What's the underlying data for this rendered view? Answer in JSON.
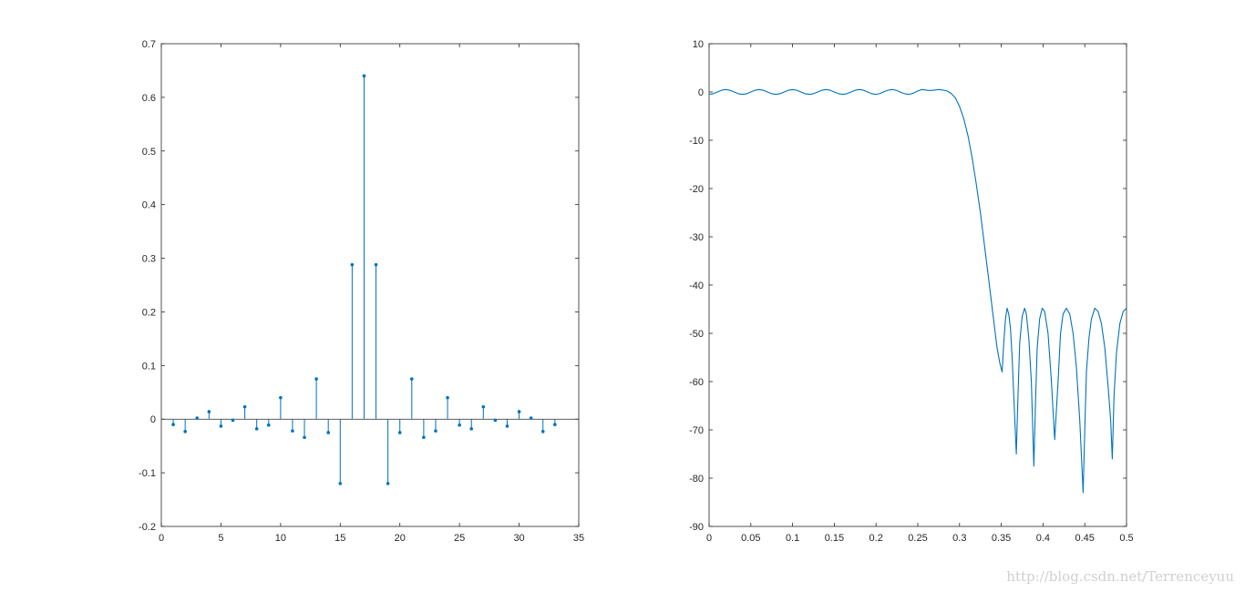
{
  "watermark": "http://blog.csdn.net/Terrenceyuu",
  "colors": {
    "series": "#0072BD",
    "axes": "#262626",
    "background": "#ffffff"
  },
  "chart_data": [
    {
      "type": "stem",
      "title": "",
      "xlabel": "",
      "ylabel": "",
      "xlim": [
        0,
        35
      ],
      "ylim": [
        -0.2,
        0.7
      ],
      "xticks": [
        0,
        5,
        10,
        15,
        20,
        25,
        30,
        35
      ],
      "xtick_labels": [
        "0",
        "5",
        "10",
        "15",
        "20",
        "25",
        "30",
        "35"
      ],
      "yticks": [
        -0.2,
        -0.1,
        0,
        0.1,
        0.2,
        0.3,
        0.4,
        0.5,
        0.6,
        0.7
      ],
      "ytick_labels": [
        "-0.2",
        "-0.1",
        "0",
        "0.1",
        "0.2",
        "0.3",
        "0.4",
        "0.5",
        "0.6",
        "0.7"
      ],
      "grid": false,
      "series": [
        {
          "x": [
            1,
            2,
            3,
            4,
            5,
            6,
            7,
            8,
            9,
            10,
            11,
            12,
            13,
            14,
            15,
            16,
            17,
            18,
            19,
            20,
            21,
            22,
            23,
            24,
            25,
            26,
            27,
            28,
            29,
            30,
            31,
            32,
            33
          ],
          "y": [
            -0.01,
            -0.023,
            0.002,
            0.014,
            -0.013,
            -0.002,
            0.023,
            -0.018,
            -0.011,
            0.04,
            -0.022,
            -0.034,
            0.075,
            -0.025,
            -0.12,
            0.288,
            0.64,
            0.288,
            -0.12,
            -0.025,
            0.075,
            -0.034,
            -0.022,
            0.04,
            -0.011,
            -0.018,
            0.023,
            -0.002,
            -0.013,
            0.014,
            0.002,
            -0.023,
            -0.01
          ]
        }
      ]
    },
    {
      "type": "line",
      "title": "",
      "xlabel": "",
      "ylabel": "",
      "xlim": [
        0,
        0.5
      ],
      "ylim": [
        -90,
        10
      ],
      "xticks": [
        0,
        0.05,
        0.1,
        0.15,
        0.2,
        0.25,
        0.3,
        0.35,
        0.4,
        0.45,
        0.5
      ],
      "xtick_labels": [
        "0",
        "0.05",
        "0.1",
        "0.15",
        "0.2",
        "0.25",
        "0.3",
        "0.35",
        "0.4",
        "0.45",
        "0.5"
      ],
      "yticks": [
        -90,
        -80,
        -70,
        -60,
        -50,
        -40,
        -30,
        -20,
        -10,
        0,
        10
      ],
      "ytick_labels": [
        "-90",
        "-80",
        "-70",
        "-60",
        "-50",
        "-40",
        "-30",
        "-20",
        "-10",
        "0",
        "10"
      ],
      "grid": false,
      "series": [
        {
          "x": [
            0,
            0.005,
            0.01,
            0.015,
            0.02,
            0.025,
            0.03,
            0.035,
            0.04,
            0.045,
            0.05,
            0.055,
            0.06,
            0.065,
            0.07,
            0.075,
            0.08,
            0.085,
            0.09,
            0.095,
            0.1,
            0.105,
            0.11,
            0.115,
            0.12,
            0.125,
            0.13,
            0.135,
            0.14,
            0.145,
            0.15,
            0.155,
            0.16,
            0.165,
            0.17,
            0.175,
            0.18,
            0.185,
            0.19,
            0.195,
            0.2,
            0.205,
            0.21,
            0.215,
            0.22,
            0.225,
            0.23,
            0.235,
            0.24,
            0.245,
            0.25,
            0.255,
            0.26,
            0.265,
            0.27,
            0.275,
            0.28,
            0.285,
            0.29,
            0.295,
            0.3,
            0.305,
            0.31,
            0.315,
            0.32,
            0.325,
            0.33,
            0.335,
            0.34,
            0.345,
            0.348,
            0.351,
            0.353,
            0.355,
            0.357,
            0.359,
            0.361,
            0.363,
            0.365,
            0.368,
            0.37,
            0.372,
            0.375,
            0.378,
            0.38,
            0.383,
            0.386,
            0.389,
            0.391,
            0.393,
            0.396,
            0.399,
            0.402,
            0.406,
            0.41,
            0.414,
            0.418,
            0.421,
            0.424,
            0.428,
            0.432,
            0.436,
            0.44,
            0.444,
            0.448,
            0.45,
            0.452,
            0.455,
            0.458,
            0.462,
            0.466,
            0.47,
            0.474,
            0.478,
            0.481,
            0.483,
            0.485,
            0.488,
            0.492,
            0.496,
            0.5
          ],
          "y": [
            -0.5,
            -0.35,
            0.0,
            0.35,
            0.5,
            0.35,
            0.0,
            -0.35,
            -0.5,
            -0.35,
            0.0,
            0.35,
            0.5,
            0.35,
            0.0,
            -0.35,
            -0.5,
            -0.35,
            0.0,
            0.35,
            0.5,
            0.35,
            0.0,
            -0.35,
            -0.5,
            -0.35,
            0.0,
            0.35,
            0.5,
            0.35,
            0.0,
            -0.35,
            -0.5,
            -0.35,
            0.0,
            0.35,
            0.5,
            0.35,
            0.0,
            -0.35,
            -0.5,
            -0.3,
            0.1,
            0.4,
            0.5,
            0.3,
            -0.1,
            -0.4,
            -0.5,
            -0.2,
            0.2,
            0.5,
            0.4,
            0.3,
            0.4,
            0.5,
            0.4,
            0.2,
            -0.3,
            -1.2,
            -3,
            -5.5,
            -9,
            -13.5,
            -19,
            -25,
            -32,
            -39,
            -46,
            -53,
            -56,
            -58,
            -52,
            -47,
            -44.8,
            -46,
            -49,
            -55,
            -63,
            -75,
            -63,
            -52,
            -46.5,
            -44.8,
            -46,
            -51,
            -60,
            -77.5,
            -64,
            -53,
            -47,
            -44.8,
            -45.5,
            -50,
            -60,
            -72,
            -60,
            -50,
            -46,
            -44.8,
            -46,
            -50,
            -57,
            -68,
            -83,
            -70,
            -58,
            -51,
            -47,
            -44.8,
            -45.5,
            -48,
            -53,
            -61,
            -68,
            -76,
            -63,
            -54,
            -48,
            -45.5,
            -44.8
          ]
        }
      ]
    }
  ]
}
